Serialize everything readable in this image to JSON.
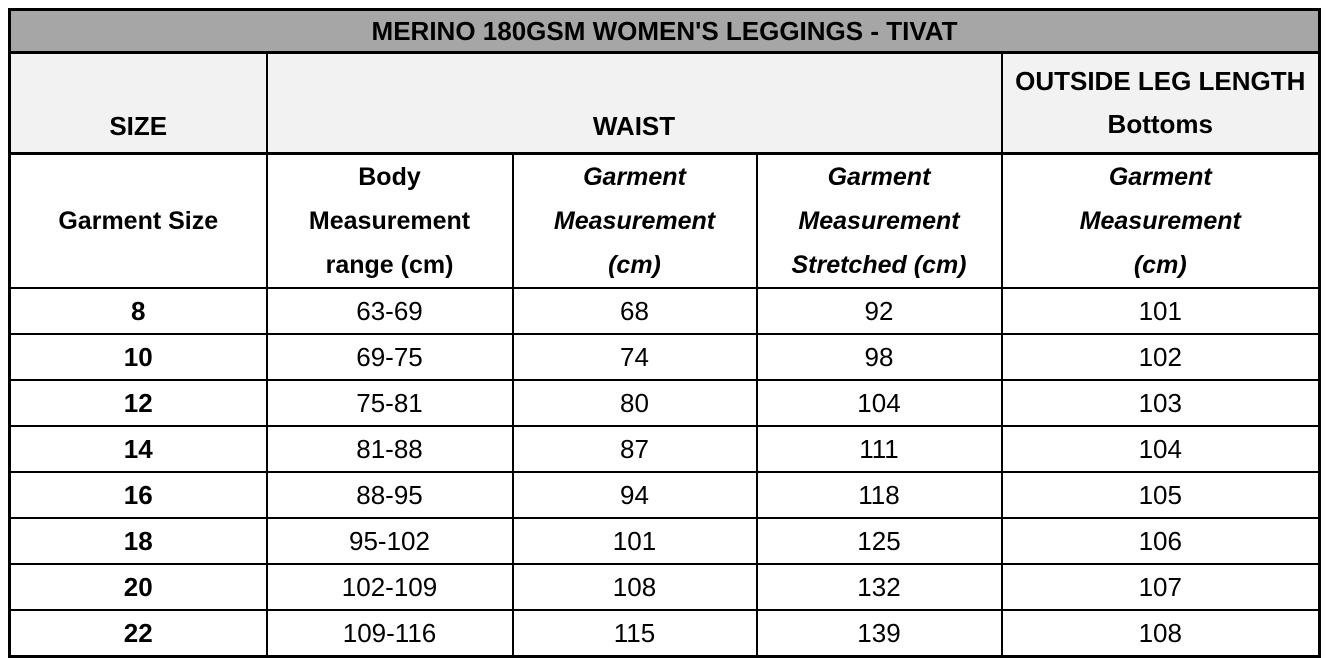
{
  "title": "MERINO 180GSM WOMEN'S LEGGINGS - TIVAT",
  "colors": {
    "title_background": "#a6a6a6",
    "header_background": "#f2f2f2",
    "row_background": "#ffffff",
    "border": "#000000",
    "text": "#000000"
  },
  "headers": {
    "size": "SIZE",
    "waist": "WAIST",
    "leg_line1": "OUTSIDE LEG LENGTH",
    "leg_line2": "Bottoms"
  },
  "subheaders": [
    {
      "lines": [
        "Garment Size"
      ],
      "italic": false
    },
    {
      "lines": [
        "Body",
        "Measurement",
        "range (cm)"
      ],
      "italic": false
    },
    {
      "lines": [
        "Garment",
        "Measurement",
        "(cm)"
      ],
      "italic": true
    },
    {
      "lines": [
        "Garment",
        "Measurement",
        "Stretched (cm)"
      ],
      "italic": true
    },
    {
      "lines": [
        "Garment",
        "Measurement",
        "(cm)"
      ],
      "italic": true
    }
  ],
  "rows": [
    {
      "size": "8",
      "body_range": "63-69",
      "garment": "68",
      "stretched": "92",
      "leg": "101"
    },
    {
      "size": "10",
      "body_range": "69-75",
      "garment": "74",
      "stretched": "98",
      "leg": "102"
    },
    {
      "size": "12",
      "body_range": "75-81",
      "garment": "80",
      "stretched": "104",
      "leg": "103"
    },
    {
      "size": "14",
      "body_range": "81-88",
      "garment": "87",
      "stretched": "111",
      "leg": "104"
    },
    {
      "size": "16",
      "body_range": "88-95",
      "garment": "94",
      "stretched": "118",
      "leg": "105"
    },
    {
      "size": "18",
      "body_range": "95-102",
      "garment": "101",
      "stretched": "125",
      "leg": "106"
    },
    {
      "size": "20",
      "body_range": "102-109",
      "garment": "108",
      "stretched": "132",
      "leg": "107"
    },
    {
      "size": "22",
      "body_range": "109-116",
      "garment": "115",
      "stretched": "139",
      "leg": "108"
    }
  ]
}
